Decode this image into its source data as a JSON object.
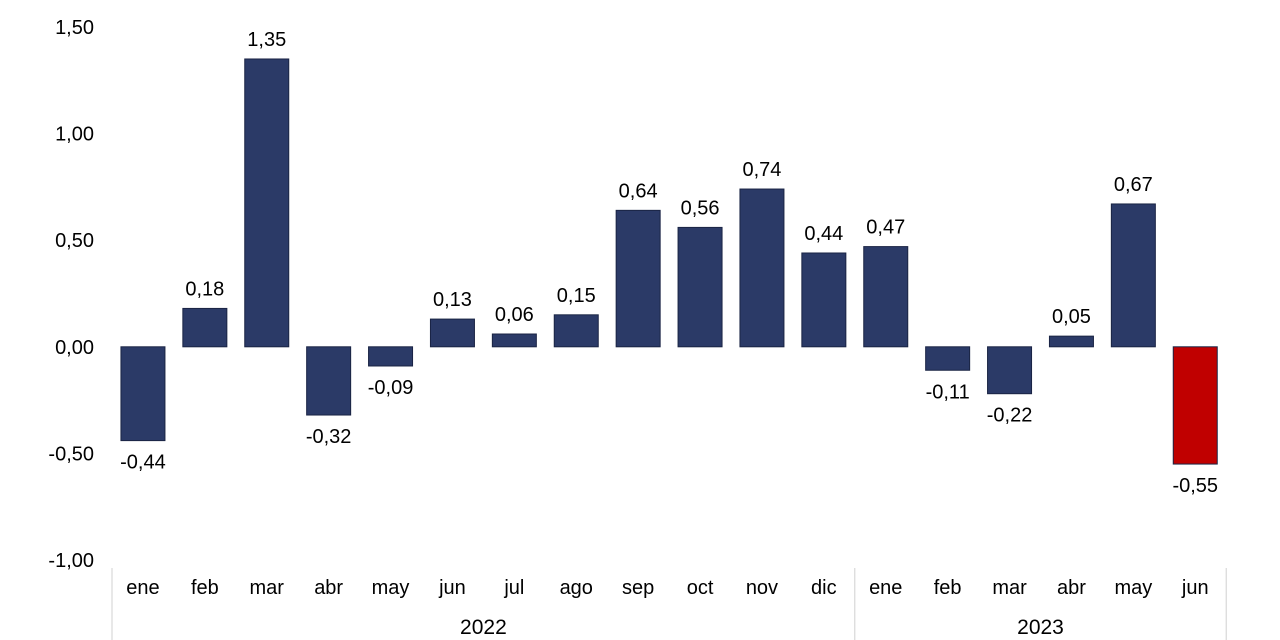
{
  "chart_data": {
    "type": "bar",
    "ylim": [
      -1.0,
      1.5
    ],
    "yticks": [
      "1,50",
      "1,00",
      "0,50",
      "0,00",
      "-0,50",
      "-1,00"
    ],
    "ytick_values": [
      1.5,
      1.0,
      0.5,
      0.0,
      -0.5,
      -1.0
    ],
    "categories": [
      "ene",
      "feb",
      "mar",
      "abr",
      "may",
      "jun",
      "jul",
      "ago",
      "sep",
      "oct",
      "nov",
      "dic",
      "ene",
      "feb",
      "mar",
      "abr",
      "may",
      "jun"
    ],
    "values": [
      -0.44,
      0.18,
      1.35,
      -0.32,
      -0.09,
      0.13,
      0.06,
      0.15,
      0.64,
      0.56,
      0.74,
      0.44,
      0.47,
      -0.11,
      -0.22,
      0.05,
      0.67,
      -0.55
    ],
    "value_labels": [
      "-0,44",
      "0,18",
      "1,35",
      "-0,32",
      "-0,09",
      "0,13",
      "0,06",
      "0,15",
      "0,64",
      "0,56",
      "0,74",
      "0,44",
      "0,47",
      "-0,11",
      "-0,22",
      "0,05",
      "0,67",
      "-0,55"
    ],
    "groups": [
      {
        "label": "2022",
        "count": 12
      },
      {
        "label": "2023",
        "count": 6
      }
    ],
    "bar_color": "#2b3a67",
    "highlight_index": 17,
    "highlight_color": "#c00000",
    "grid": false,
    "legend": "none"
  }
}
